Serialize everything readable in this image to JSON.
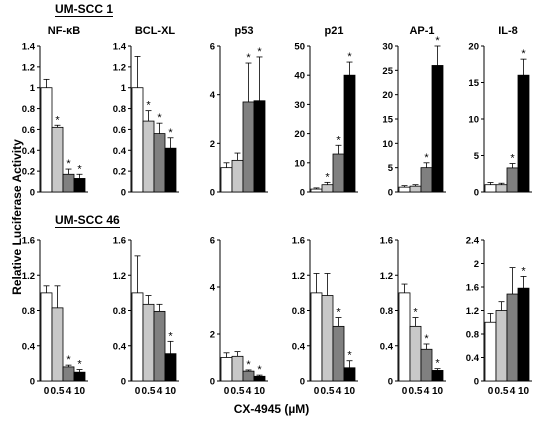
{
  "row_labels": [
    "UM-SCC 1",
    "UM-SCC 46"
  ],
  "ylabel": "Relative Luciferase Activity",
  "xlabel": "CX-4945 (µM)",
  "categories": [
    "0",
    "0.5",
    "4",
    "10"
  ],
  "colors": [
    "#ffffff",
    "#c8c8c8",
    "#808080",
    "#000000"
  ],
  "chart_data": [
    {
      "type": "bar",
      "row": 0,
      "title": "NF-κB",
      "categories": [
        "0",
        "0.5",
        "4",
        "10"
      ],
      "values": [
        1.0,
        0.62,
        0.17,
        0.13
      ],
      "errors": [
        0.08,
        0.02,
        0.05,
        0.04
      ],
      "significant": [
        false,
        true,
        true,
        true
      ],
      "ylim": [
        0,
        1.4
      ],
      "yticks": [
        "0",
        "0.2",
        "0.4",
        "0.6",
        "0.8",
        "1",
        "1.2",
        "1.4"
      ]
    },
    {
      "type": "bar",
      "row": 0,
      "title": "BCL-XL",
      "categories": [
        "0",
        "0.5",
        "4",
        "10"
      ],
      "values": [
        1.0,
        0.68,
        0.56,
        0.42
      ],
      "errors": [
        0.3,
        0.1,
        0.1,
        0.1
      ],
      "significant": [
        false,
        true,
        true,
        true
      ],
      "ylim": [
        0,
        1.4
      ],
      "yticks": [
        "0",
        "0.2",
        "0.4",
        "0.6",
        "0.8",
        "1",
        "1.2",
        "1.4"
      ]
    },
    {
      "type": "bar",
      "row": 0,
      "title": "p53",
      "categories": [
        "0",
        "0.5",
        "4",
        "10"
      ],
      "values": [
        1.0,
        1.3,
        3.7,
        3.75
      ],
      "errors": [
        0.2,
        0.3,
        1.6,
        1.8
      ],
      "significant": [
        false,
        false,
        true,
        true
      ],
      "ylim": [
        0,
        6
      ],
      "yticks": [
        "0",
        "2",
        "4",
        "6"
      ]
    },
    {
      "type": "bar",
      "row": 0,
      "title": "p21",
      "categories": [
        "0",
        "0.5",
        "4",
        "10"
      ],
      "values": [
        1.0,
        2.5,
        13.0,
        40.0
      ],
      "errors": [
        0.4,
        0.8,
        3.0,
        4.5
      ],
      "significant": [
        false,
        true,
        true,
        true
      ],
      "ylim": [
        0,
        50
      ],
      "yticks": [
        "0",
        "10",
        "20",
        "30",
        "40",
        "50"
      ]
    },
    {
      "type": "bar",
      "row": 0,
      "title": "AP-1",
      "categories": [
        "0",
        "0.5",
        "4",
        "10"
      ],
      "values": [
        1.0,
        1.2,
        5.0,
        26.0
      ],
      "errors": [
        0.3,
        0.3,
        1.0,
        4.0
      ],
      "significant": [
        false,
        false,
        true,
        true
      ],
      "ylim": [
        0,
        30
      ],
      "yticks": [
        "0",
        "5",
        "10",
        "15",
        "20",
        "25",
        "30"
      ]
    },
    {
      "type": "bar",
      "row": 0,
      "title": "IL-8",
      "categories": [
        "0",
        "0.5",
        "4",
        "10"
      ],
      "values": [
        1.0,
        1.0,
        3.3,
        16.0
      ],
      "errors": [
        0.3,
        0.2,
        0.6,
        2.2
      ],
      "significant": [
        false,
        false,
        true,
        true
      ],
      "ylim": [
        0,
        20
      ],
      "yticks": [
        "0",
        "5",
        "10",
        "15",
        "20"
      ]
    },
    {
      "type": "bar",
      "row": 1,
      "title": "",
      "categories": [
        "0",
        "0.5",
        "4",
        "10"
      ],
      "values": [
        1.0,
        0.83,
        0.16,
        0.1
      ],
      "errors": [
        0.08,
        0.25,
        0.02,
        0.03
      ],
      "significant": [
        false,
        false,
        true,
        true
      ],
      "ylim": [
        0,
        1.6
      ],
      "yticks": [
        "0",
        "0.4",
        "0.8",
        "1.2",
        "1.6"
      ]
    },
    {
      "type": "bar",
      "row": 1,
      "title": "",
      "categories": [
        "0",
        "0.5",
        "4",
        "10"
      ],
      "values": [
        1.0,
        0.87,
        0.79,
        0.31
      ],
      "errors": [
        0.42,
        0.1,
        0.08,
        0.14
      ],
      "significant": [
        false,
        false,
        false,
        true
      ],
      "ylim": [
        0,
        1.6
      ],
      "yticks": [
        "0",
        "0.4",
        "0.8",
        "1.2",
        "1.6"
      ]
    },
    {
      "type": "bar",
      "row": 1,
      "title": "",
      "categories": [
        "0",
        "0.5",
        "4",
        "10"
      ],
      "values": [
        1.0,
        1.05,
        0.42,
        0.2
      ],
      "errors": [
        0.2,
        0.2,
        0.05,
        0.05
      ],
      "significant": [
        false,
        false,
        true,
        true
      ],
      "ylim": [
        0,
        6
      ],
      "yticks": [
        "0",
        "2",
        "4",
        "6"
      ]
    },
    {
      "type": "bar",
      "row": 1,
      "title": "",
      "categories": [
        "0",
        "0.5",
        "4",
        "10"
      ],
      "values": [
        1.0,
        0.97,
        0.62,
        0.15
      ],
      "errors": [
        0.22,
        0.25,
        0.1,
        0.08
      ],
      "significant": [
        false,
        false,
        true,
        true
      ],
      "ylim": [
        0,
        1.6
      ],
      "yticks": [
        "0",
        "0.4",
        "0.8",
        "1.2",
        "1.6"
      ]
    },
    {
      "type": "bar",
      "row": 1,
      "title": "",
      "categories": [
        "0",
        "0.5",
        "4",
        "10"
      ],
      "values": [
        1.0,
        0.62,
        0.36,
        0.12
      ],
      "errors": [
        0.1,
        0.1,
        0.06,
        0.02
      ],
      "significant": [
        false,
        true,
        true,
        true
      ],
      "ylim": [
        0,
        1.6
      ],
      "yticks": [
        "0",
        "0.4",
        "0.8",
        "1.2",
        "1.6"
      ]
    },
    {
      "type": "bar",
      "row": 1,
      "title": "",
      "categories": [
        "0",
        "0.5",
        "4",
        "10"
      ],
      "values": [
        1.0,
        1.2,
        1.48,
        1.58
      ],
      "errors": [
        0.15,
        0.15,
        0.45,
        0.2
      ],
      "significant": [
        false,
        false,
        false,
        true
      ],
      "ylim": [
        0,
        2.4
      ],
      "yticks": [
        "0",
        "0.4",
        "0.8",
        "1.2",
        "1.6",
        "2",
        "2.4"
      ]
    }
  ]
}
